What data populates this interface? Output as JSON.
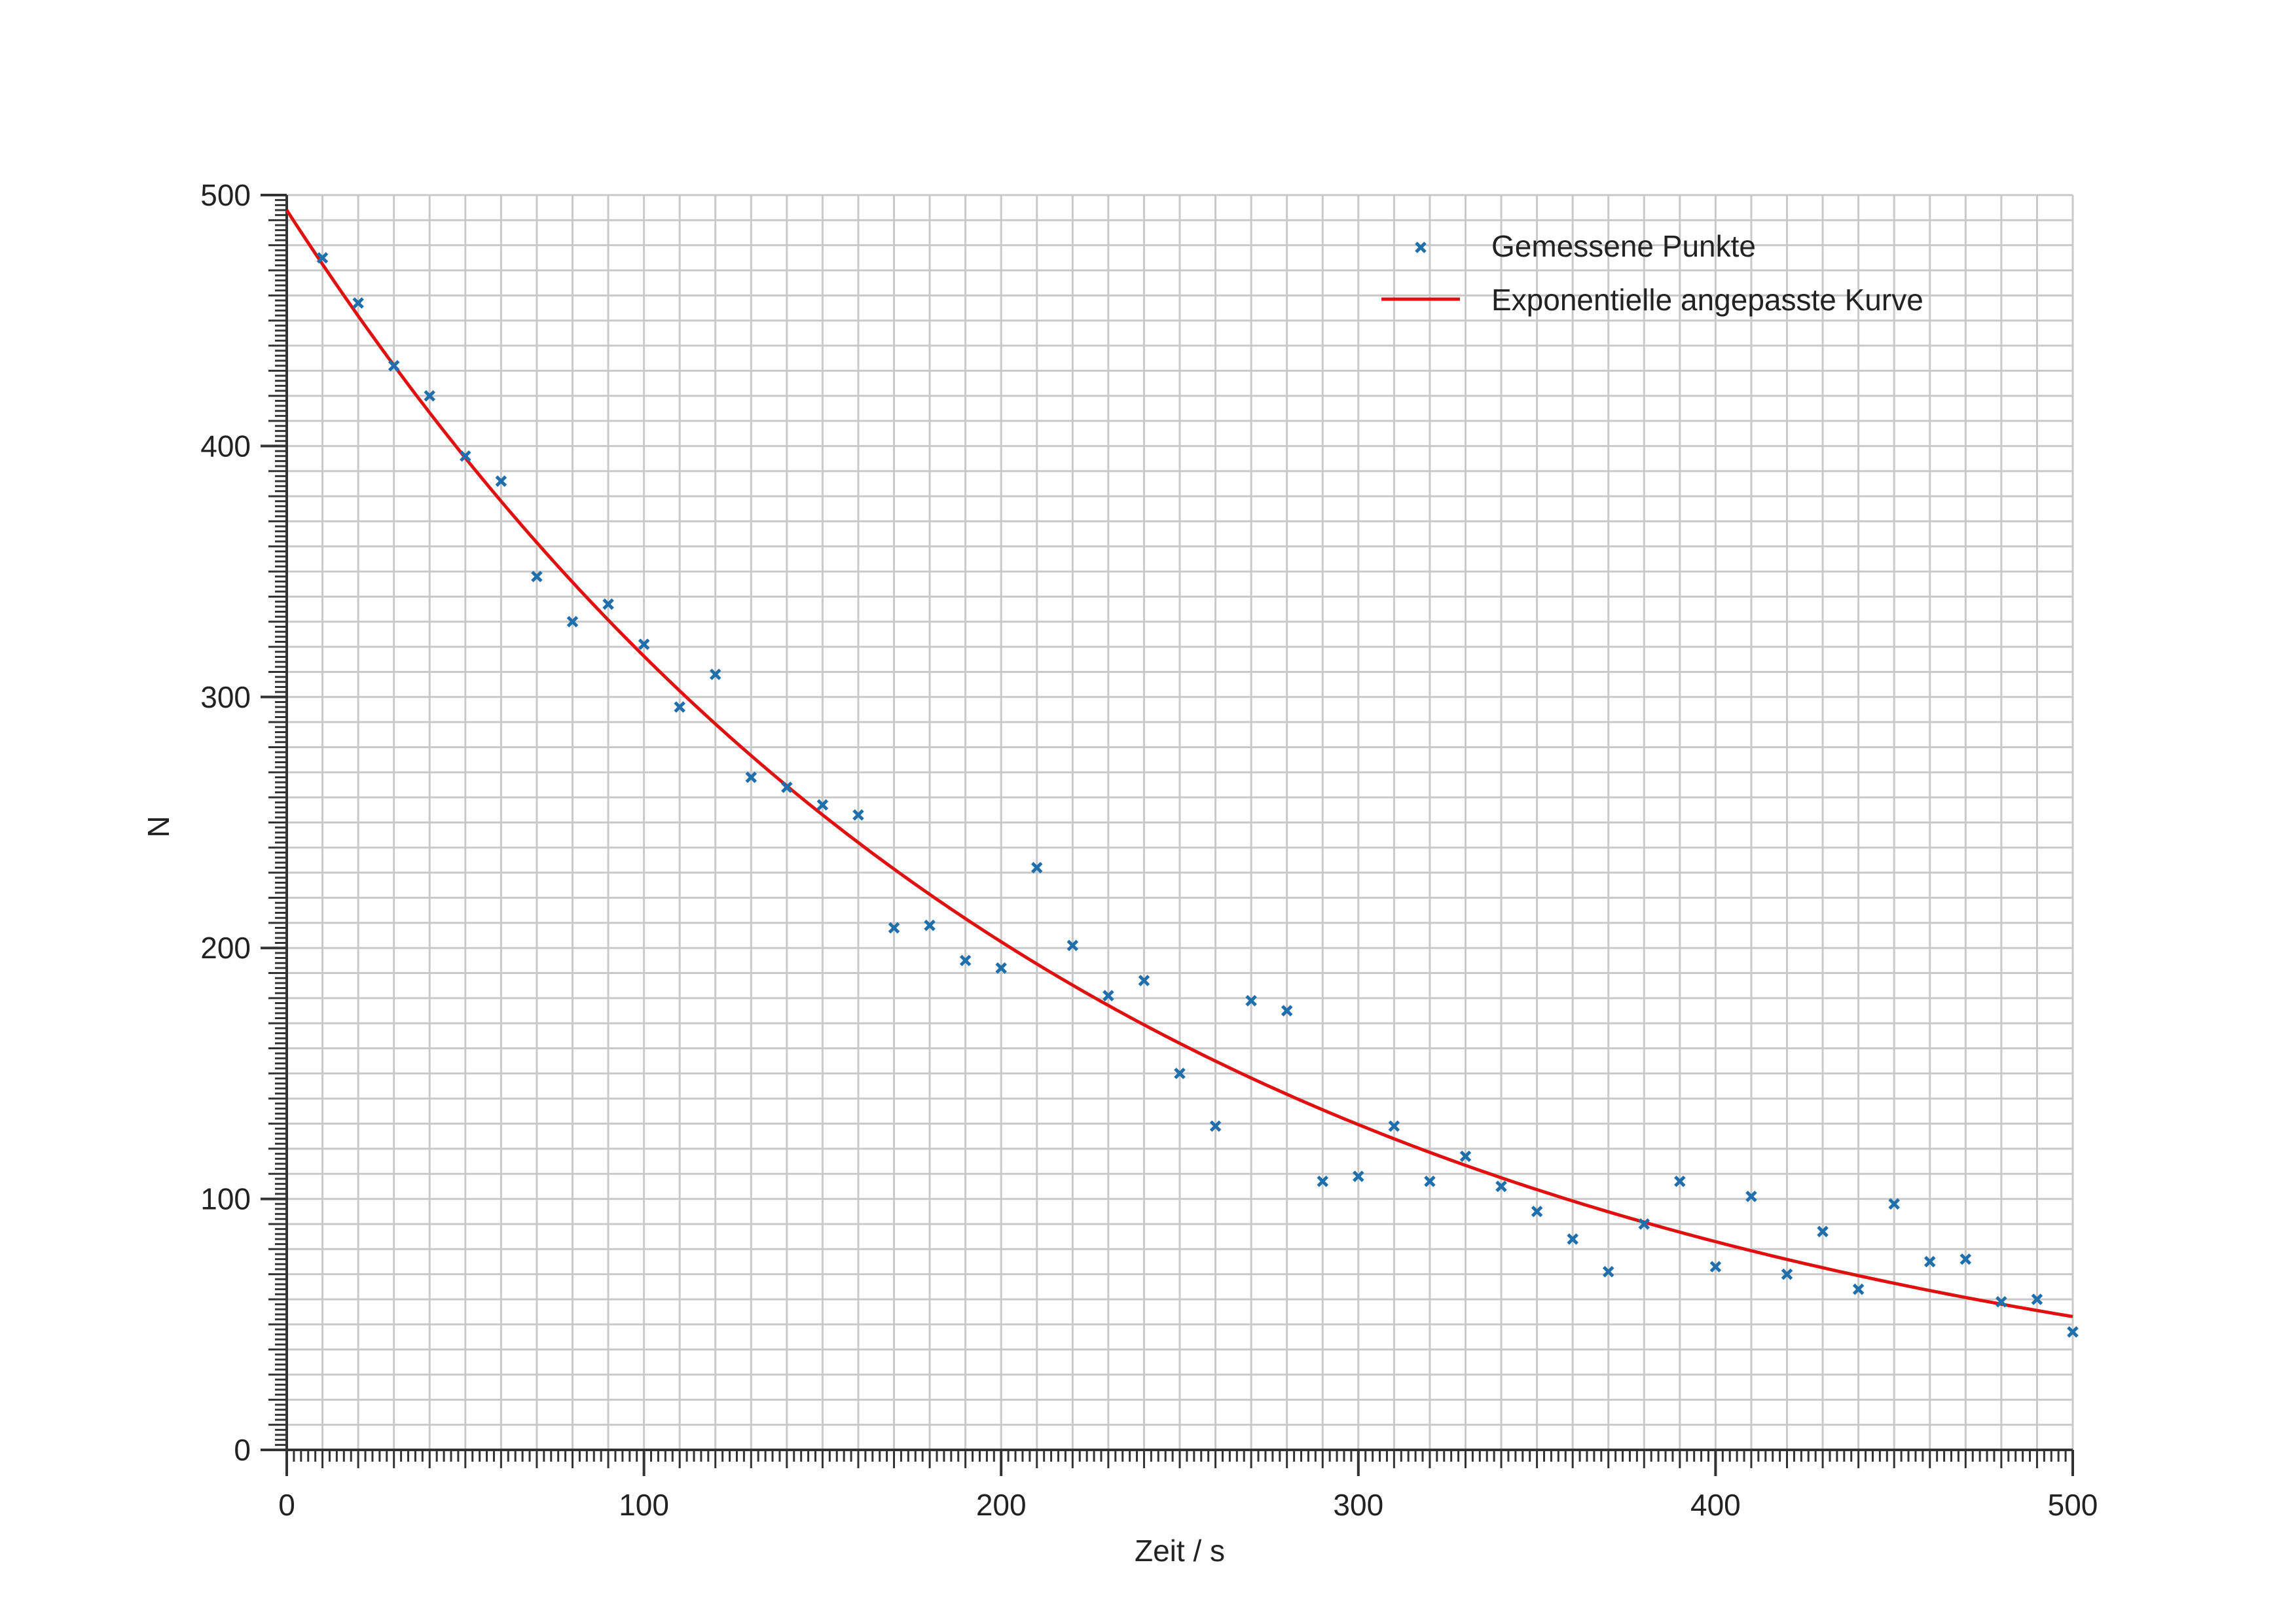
{
  "chart_data": {
    "type": "scatter",
    "title": "",
    "xlabel": "Zeit / s",
    "ylabel": "N",
    "xlim": [
      0,
      500
    ],
    "ylim": [
      0,
      500
    ],
    "x_ticks": [
      0,
      100,
      200,
      300,
      400,
      500
    ],
    "y_ticks": [
      0,
      100,
      200,
      300,
      400,
      500
    ],
    "x_tick_labels": [
      "0",
      "100",
      "200",
      "300",
      "400",
      "500"
    ],
    "y_tick_labels": [
      "0",
      "100",
      "200",
      "300",
      "400",
      "500"
    ],
    "grid": true,
    "legend_position": "top-right",
    "series": [
      {
        "name": "Gemessene Punkte",
        "kind": "scatter",
        "marker": "x",
        "color": "#1f6fad",
        "points": [
          [
            10,
            475
          ],
          [
            20,
            457
          ],
          [
            30,
            432
          ],
          [
            40,
            420
          ],
          [
            50,
            396
          ],
          [
            60,
            386
          ],
          [
            70,
            348
          ],
          [
            80,
            330
          ],
          [
            90,
            337
          ],
          [
            100,
            321
          ],
          [
            110,
            296
          ],
          [
            120,
            309
          ],
          [
            130,
            268
          ],
          [
            140,
            264
          ],
          [
            150,
            257
          ],
          [
            160,
            253
          ],
          [
            170,
            208
          ],
          [
            180,
            209
          ],
          [
            190,
            195
          ],
          [
            200,
            192
          ],
          [
            210,
            232
          ],
          [
            220,
            201
          ],
          [
            230,
            181
          ],
          [
            240,
            187
          ],
          [
            250,
            150
          ],
          [
            260,
            129
          ],
          [
            270,
            179
          ],
          [
            280,
            175
          ],
          [
            290,
            107
          ],
          [
            300,
            109
          ],
          [
            310,
            129
          ],
          [
            320,
            107
          ],
          [
            330,
            117
          ],
          [
            340,
            105
          ],
          [
            350,
            95
          ],
          [
            360,
            84
          ],
          [
            370,
            71
          ],
          [
            380,
            90
          ],
          [
            390,
            107
          ],
          [
            400,
            73
          ],
          [
            410,
            101
          ],
          [
            420,
            70
          ],
          [
            430,
            87
          ],
          [
            440,
            64
          ],
          [
            450,
            98
          ],
          [
            460,
            75
          ],
          [
            470,
            76
          ],
          [
            480,
            59
          ],
          [
            490,
            60
          ],
          [
            500,
            47
          ]
        ]
      },
      {
        "name": "Exponentielle angepasste Kurve",
        "kind": "line",
        "color": "#e01010",
        "model": {
          "form": "N = A * exp(-k * t)",
          "A": 494,
          "k": 0.00446
        }
      }
    ]
  }
}
